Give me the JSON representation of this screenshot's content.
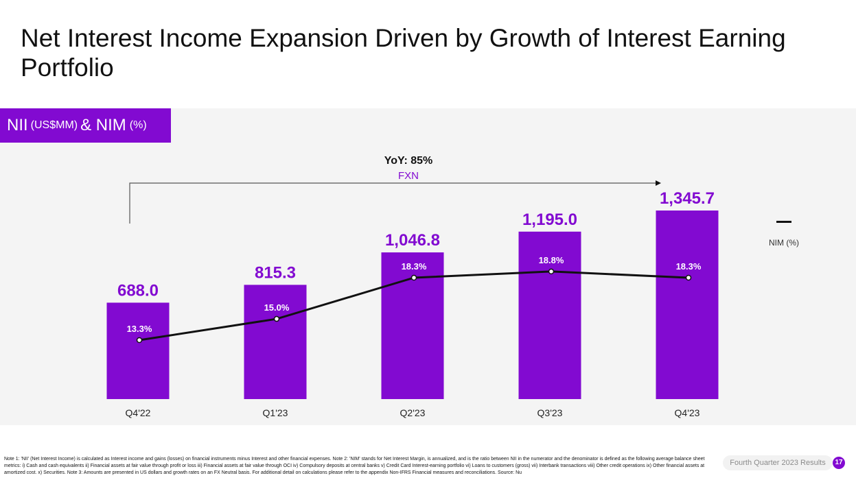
{
  "page": {
    "title": "Net Interest Income Expansion Driven by Growth of Interest Earning Portfolio",
    "section_label_main": "NII",
    "section_label_unit1": "(US$MM)",
    "section_label_amp": "& NIM",
    "section_label_unit2": "(%)",
    "yoy_label": "YoY: 85%",
    "fxn_label": "FXN",
    "footnote": "Note 1: 'NII' (Net Interest Income) is calculated as Interest income and gains (losses) on financial instruments minus Interest and other financial expenses. Note 2: 'NIM' stands for Net Interest Margin, is annualized, and is the ratio between NII in the numerator and the denominator is defined as the following average balance sheet metrics: i) Cash and cash equivalents ii) Financial assets at fair value through profit or loss iii) Financial assets at fair value through OCI iv) Compulsory deposits at central banks v) Credit Card Interest-earning portfolio vi) Loans to customers (gross) vii) Interbank transactions viii) Other credit operations ix) Other financial assets at amortized cost. x) Securities. Note 3: Amounts are presented in US dollars and growth rates on an FX Neutral basis. For additional detail on calculations please refer to the appendix Non-IFRS Financial measures and reconciliations. Source: Nu",
    "footer_label": "Fourth Quarter 2023 Results",
    "page_number": "17"
  },
  "colors": {
    "accent": "#820ad1",
    "bar": "#820ad1",
    "line": "#111111",
    "panel": "#f4f4f4"
  },
  "chart_data": {
    "type": "bar",
    "title": "NII (US$MM) & NIM (%)",
    "categories": [
      "Q4'22",
      "Q1'23",
      "Q2'23",
      "Q3'23",
      "Q4'23"
    ],
    "series": [
      {
        "name": "NII (US$MM)",
        "type": "bar",
        "values": [
          688.0,
          815.3,
          1046.8,
          1195.0,
          1345.7
        ],
        "labels": [
          "688.0",
          "815.3",
          "1,046.8",
          "1,195.0",
          "1,345.7"
        ]
      },
      {
        "name": "NIM (%)",
        "type": "line",
        "values": [
          13.3,
          15.0,
          18.3,
          18.8,
          18.3
        ],
        "labels": [
          "13.3%",
          "15.0%",
          "18.3%",
          "18.8%",
          "18.3%"
        ]
      }
    ],
    "legend": {
      "label": "NIM (%)",
      "position": "right"
    },
    "annotation": {
      "text": "YoY: 85%",
      "sub": "FXN",
      "from": "Q4'22",
      "to": "Q4'23"
    },
    "ylim_bar": [
      0,
      1500
    ],
    "grid": false
  }
}
